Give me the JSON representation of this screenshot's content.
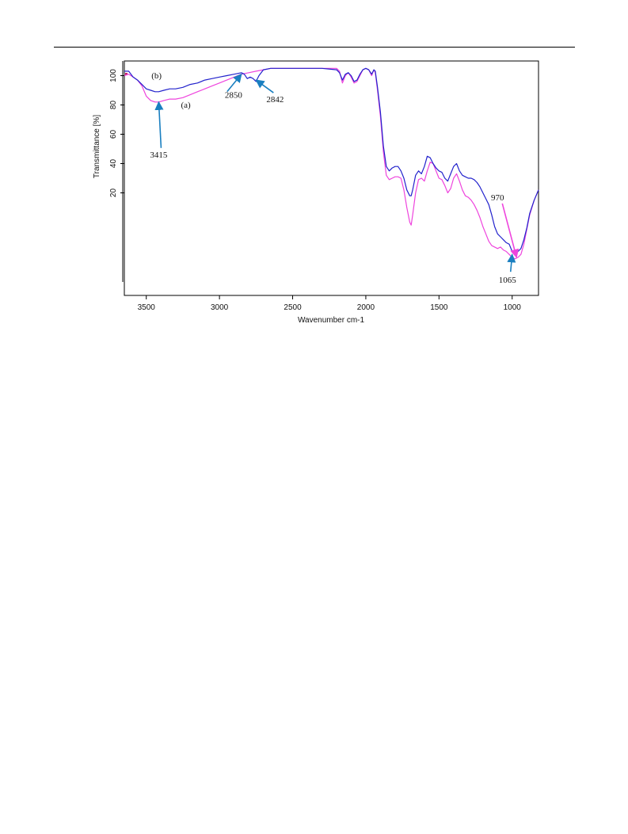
{
  "chart_data": {
    "type": "line",
    "title": "",
    "xlabel": "Wavenumber cm-1",
    "ylabel": "Transmittance [%]",
    "xlim": [
      3650,
      820
    ],
    "ylim": [
      -50,
      110
    ],
    "x_ticks": [
      3500,
      3000,
      2500,
      2000,
      1500,
      1000
    ],
    "y_ticks": [
      20,
      40,
      60,
      80,
      100
    ],
    "grid": false,
    "legend": "none",
    "series": [
      {
        "name": "(a)",
        "color": "#ee44dd",
        "points": [
          [
            3650,
            100
          ],
          [
            3620,
            101
          ],
          [
            3590,
            99
          ],
          [
            3560,
            97
          ],
          [
            3530,
            93
          ],
          [
            3500,
            86
          ],
          [
            3470,
            83
          ],
          [
            3440,
            82
          ],
          [
            3415,
            82
          ],
          [
            3380,
            83
          ],
          [
            3340,
            84
          ],
          [
            3300,
            84
          ],
          [
            3250,
            85
          ],
          [
            3200,
            87
          ],
          [
            3150,
            89
          ],
          [
            3100,
            91
          ],
          [
            3050,
            93
          ],
          [
            3000,
            95
          ],
          [
            2950,
            97
          ],
          [
            2900,
            99
          ],
          [
            2850,
            101
          ],
          [
            2800,
            102
          ],
          [
            2750,
            103
          ],
          [
            2700,
            104
          ],
          [
            2650,
            105
          ],
          [
            2600,
            105
          ],
          [
            2500,
            105
          ],
          [
            2400,
            105
          ],
          [
            2300,
            105
          ],
          [
            2200,
            105
          ],
          [
            2180,
            103
          ],
          [
            2160,
            95
          ],
          [
            2140,
            100
          ],
          [
            2120,
            102
          ],
          [
            2100,
            99
          ],
          [
            2080,
            95
          ],
          [
            2060,
            96
          ],
          [
            2040,
            100
          ],
          [
            2020,
            104
          ],
          [
            2000,
            105
          ],
          [
            1980,
            104
          ],
          [
            1960,
            100
          ],
          [
            1945,
            104
          ],
          [
            1935,
            102
          ],
          [
            1920,
            90
          ],
          [
            1900,
            72
          ],
          [
            1880,
            48
          ],
          [
            1860,
            32
          ],
          [
            1840,
            29
          ],
          [
            1820,
            30
          ],
          [
            1800,
            31
          ],
          [
            1780,
            31
          ],
          [
            1760,
            30
          ],
          [
            1740,
            22
          ],
          [
            1720,
            10
          ],
          [
            1700,
            0
          ],
          [
            1690,
            -2
          ],
          [
            1680,
            5
          ],
          [
            1660,
            20
          ],
          [
            1640,
            29
          ],
          [
            1620,
            30
          ],
          [
            1600,
            28
          ],
          [
            1580,
            35
          ],
          [
            1560,
            41
          ],
          [
            1540,
            40
          ],
          [
            1520,
            35
          ],
          [
            1500,
            30
          ],
          [
            1480,
            29
          ],
          [
            1460,
            25
          ],
          [
            1440,
            20
          ],
          [
            1420,
            23
          ],
          [
            1400,
            30
          ],
          [
            1380,
            33
          ],
          [
            1360,
            28
          ],
          [
            1340,
            22
          ],
          [
            1320,
            18
          ],
          [
            1300,
            17
          ],
          [
            1280,
            15
          ],
          [
            1260,
            12
          ],
          [
            1240,
            8
          ],
          [
            1220,
            3
          ],
          [
            1200,
            -3
          ],
          [
            1180,
            -8
          ],
          [
            1160,
            -13
          ],
          [
            1140,
            -16
          ],
          [
            1120,
            -17
          ],
          [
            1100,
            -18
          ],
          [
            1080,
            -17
          ],
          [
            1060,
            -19
          ],
          [
            1040,
            -20
          ],
          [
            1020,
            -22
          ],
          [
            1000,
            -24
          ],
          [
            980,
            -25
          ],
          [
            960,
            -24
          ],
          [
            940,
            -22
          ],
          [
            920,
            -15
          ],
          [
            900,
            -5
          ],
          [
            880,
            5
          ],
          [
            850,
            15
          ],
          [
            820,
            22
          ]
        ]
      },
      {
        "name": "(b)",
        "color": "#2222cc",
        "points": [
          [
            3650,
            103
          ],
          [
            3620,
            103
          ],
          [
            3590,
            99
          ],
          [
            3560,
            97
          ],
          [
            3530,
            94
          ],
          [
            3500,
            91
          ],
          [
            3470,
            90
          ],
          [
            3440,
            89
          ],
          [
            3415,
            89
          ],
          [
            3380,
            90
          ],
          [
            3340,
            91
          ],
          [
            3300,
            91
          ],
          [
            3250,
            92
          ],
          [
            3200,
            94
          ],
          [
            3150,
            95
          ],
          [
            3100,
            97
          ],
          [
            3050,
            98
          ],
          [
            3000,
            99
          ],
          [
            2950,
            100
          ],
          [
            2900,
            101
          ],
          [
            2850,
            102
          ],
          [
            2830,
            101
          ],
          [
            2810,
            98
          ],
          [
            2790,
            99
          ],
          [
            2770,
            98
          ],
          [
            2750,
            96
          ],
          [
            2730,
            100
          ],
          [
            2700,
            104
          ],
          [
            2650,
            105
          ],
          [
            2600,
            105
          ],
          [
            2500,
            105
          ],
          [
            2400,
            105
          ],
          [
            2300,
            105
          ],
          [
            2200,
            104
          ],
          [
            2180,
            102
          ],
          [
            2160,
            97
          ],
          [
            2140,
            101
          ],
          [
            2120,
            102
          ],
          [
            2100,
            100
          ],
          [
            2080,
            96
          ],
          [
            2060,
            97
          ],
          [
            2040,
            101
          ],
          [
            2020,
            104
          ],
          [
            2000,
            105
          ],
          [
            1980,
            104
          ],
          [
            1960,
            101
          ],
          [
            1945,
            104
          ],
          [
            1935,
            103
          ],
          [
            1920,
            92
          ],
          [
            1900,
            75
          ],
          [
            1880,
            52
          ],
          [
            1860,
            38
          ],
          [
            1840,
            35
          ],
          [
            1820,
            37
          ],
          [
            1800,
            38
          ],
          [
            1780,
            38
          ],
          [
            1760,
            35
          ],
          [
            1740,
            30
          ],
          [
            1720,
            22
          ],
          [
            1700,
            18
          ],
          [
            1690,
            18
          ],
          [
            1680,
            22
          ],
          [
            1660,
            32
          ],
          [
            1640,
            35
          ],
          [
            1620,
            33
          ],
          [
            1600,
            38
          ],
          [
            1580,
            45
          ],
          [
            1560,
            44
          ],
          [
            1540,
            40
          ],
          [
            1520,
            37
          ],
          [
            1500,
            35
          ],
          [
            1480,
            34
          ],
          [
            1460,
            30
          ],
          [
            1440,
            28
          ],
          [
            1420,
            33
          ],
          [
            1400,
            38
          ],
          [
            1380,
            40
          ],
          [
            1360,
            35
          ],
          [
            1340,
            32
          ],
          [
            1320,
            31
          ],
          [
            1300,
            30
          ],
          [
            1280,
            30
          ],
          [
            1260,
            29
          ],
          [
            1240,
            27
          ],
          [
            1220,
            24
          ],
          [
            1200,
            20
          ],
          [
            1180,
            16
          ],
          [
            1160,
            12
          ],
          [
            1140,
            5
          ],
          [
            1120,
            -3
          ],
          [
            1100,
            -8
          ],
          [
            1080,
            -10
          ],
          [
            1060,
            -12
          ],
          [
            1040,
            -14
          ],
          [
            1020,
            -15
          ],
          [
            1000,
            -20
          ],
          [
            980,
            -22
          ],
          [
            960,
            -20
          ],
          [
            940,
            -18
          ],
          [
            920,
            -12
          ],
          [
            900,
            -4
          ],
          [
            880,
            6
          ],
          [
            850,
            15
          ],
          [
            820,
            22
          ]
        ]
      }
    ],
    "annotations": [
      {
        "text": "3415",
        "x": 3415,
        "y": 82
      },
      {
        "text": "2850",
        "x": 2850,
        "y": 101
      },
      {
        "text": "2842",
        "x": 2750,
        "y": 97
      },
      {
        "text": "970",
        "x": 970,
        "y": -24
      },
      {
        "text": "1065",
        "x": 1000,
        "y": -22
      }
    ],
    "curve_labels": [
      {
        "text": "(b)",
        "x": 3430,
        "y": 98
      },
      {
        "text": "(a)",
        "x": 3230,
        "y": 78
      }
    ]
  }
}
